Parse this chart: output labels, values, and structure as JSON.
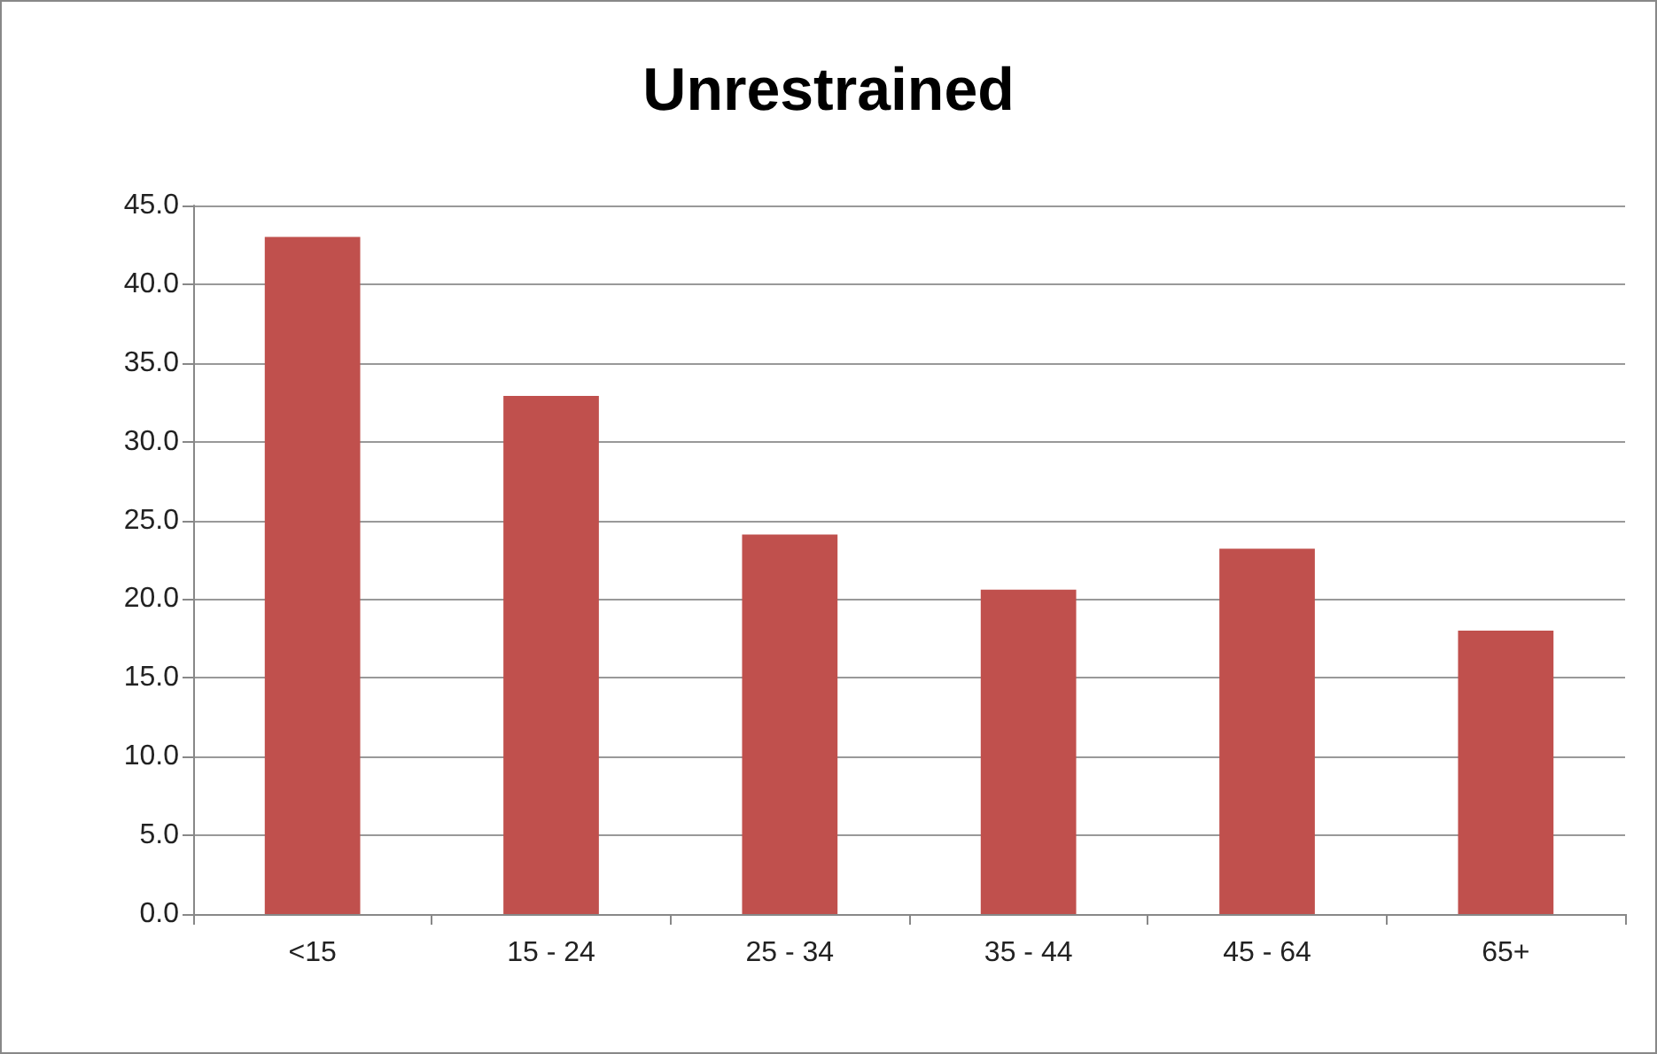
{
  "chart_data": {
    "type": "bar",
    "title": "Unrestrained",
    "categories": [
      "<15",
      "15 - 24",
      "25 - 34",
      "35 - 44",
      "45 - 64",
      "65+"
    ],
    "values": [
      43.0,
      32.9,
      24.1,
      20.6,
      23.2,
      18.0
    ],
    "color": "#c0504d",
    "ylim": [
      0,
      45
    ],
    "yticks": [
      {
        "value": 0,
        "label": "0.0"
      },
      {
        "value": 5,
        "label": "5.0"
      },
      {
        "value": 10,
        "label": "10.0"
      },
      {
        "value": 15,
        "label": "15.0"
      },
      {
        "value": 20,
        "label": "20.0"
      },
      {
        "value": 25,
        "label": "25.0"
      },
      {
        "value": 30,
        "label": "30.0"
      },
      {
        "value": 35,
        "label": "35.0"
      },
      {
        "value": 40,
        "label": "40.0"
      },
      {
        "value": 45,
        "label": "45.0"
      }
    ],
    "grid": "y"
  }
}
